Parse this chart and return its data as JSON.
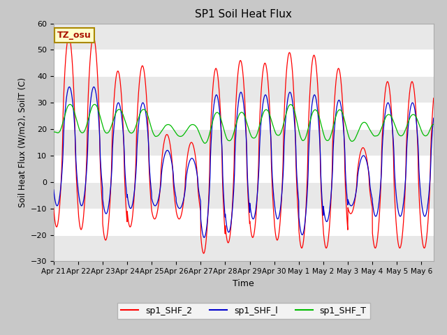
{
  "title": "SP1 Soil Heat Flux",
  "xlabel": "Time",
  "ylabel": "Soil Heat Flux (W/m2), SoilT (C)",
  "ylim": [
    -30,
    60
  ],
  "yticks": [
    -30,
    -20,
    -10,
    0,
    10,
    20,
    30,
    40,
    50,
    60
  ],
  "tz_label": "TZ_osu",
  "fig_bg_color": "#c8c8c8",
  "plot_bg_color": "#ffffff",
  "line_colors": {
    "shf2": "#ff0000",
    "shfl": "#0000cc",
    "shft": "#00bb00"
  },
  "legend_labels": [
    "sp1_SHF_2",
    "sp1_SHF_l",
    "sp1_SHF_T"
  ],
  "xtick_labels": [
    "Apr 21",
    "Apr 22",
    "Apr 23",
    "Apr 24",
    "Apr 25",
    "Apr 26",
    "Apr 27",
    "Apr 28",
    "Apr 29",
    "Apr 30",
    "May 1",
    "May 2",
    "May 3",
    "May 4",
    "May 5",
    "May 6"
  ],
  "n_days": 15.5,
  "pts_per_day": 144,
  "shf2_peaks": [
    55,
    55,
    42,
    44,
    18,
    15,
    43,
    46,
    45,
    49,
    48,
    43,
    13,
    38,
    38
  ],
  "shf2_troughs": [
    -17,
    -18,
    -22,
    -17,
    -14,
    -14,
    -27,
    -23,
    -21,
    -22,
    -25,
    -25,
    -12,
    -25,
    -25
  ],
  "shfl_peaks": [
    36,
    36,
    30,
    30,
    12,
    9,
    33,
    34,
    33,
    34,
    33,
    31,
    10,
    30,
    30
  ],
  "shfl_troughs": [
    -9,
    -9,
    -12,
    -10,
    -9,
    -10,
    -21,
    -19,
    -14,
    -14,
    -20,
    -15,
    -9,
    -13,
    -13
  ],
  "shft_peaks": [
    30,
    30,
    28,
    28,
    22,
    22,
    27,
    27,
    28,
    30,
    28,
    28,
    23,
    26,
    26
  ],
  "shft_troughs": [
    18,
    18,
    18,
    18,
    17,
    17,
    14,
    15,
    16,
    17,
    15,
    15,
    15,
    17,
    17
  ],
  "shf2_phase": 0.37,
  "shfl_phase": 0.39,
  "shft_phase": 0.42,
  "grid_colors": [
    "#e8e8e8",
    "#f8f8f8"
  ]
}
